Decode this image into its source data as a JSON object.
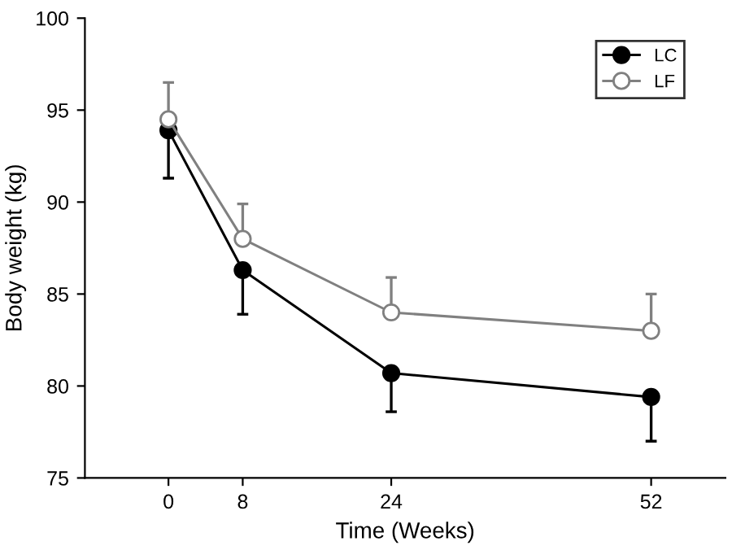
{
  "chart_data": {
    "type": "line",
    "xlabel": "Time (Weeks)",
    "ylabel": "Body weight (kg)",
    "x": [
      0,
      8,
      24,
      52
    ],
    "series": [
      {
        "name": "LC",
        "color": "#000000",
        "values": [
          93.9,
          86.3,
          80.7,
          79.4
        ],
        "errors": [
          [
            91.3,
            93.9
          ],
          [
            83.9,
            86.3
          ],
          [
            78.6,
            80.7
          ],
          [
            77.0,
            79.4
          ]
        ]
      },
      {
        "name": "LF",
        "color": "#808080",
        "values": [
          94.5,
          88.0,
          84.0,
          83.0
        ],
        "errors": [
          [
            94.5,
            96.5
          ],
          [
            88.0,
            89.9
          ],
          [
            84.0,
            85.9
          ],
          [
            83.0,
            85.0
          ]
        ]
      }
    ],
    "xlim": [
      -9,
      60
    ],
    "xticks": [
      0,
      8,
      24,
      52
    ],
    "ylim": [
      75,
      100
    ],
    "yticks": [
      75,
      80,
      85,
      90,
      95,
      100
    ],
    "grid": false,
    "legend": "top right",
    "marker": "circle",
    "line_style": "solid"
  }
}
